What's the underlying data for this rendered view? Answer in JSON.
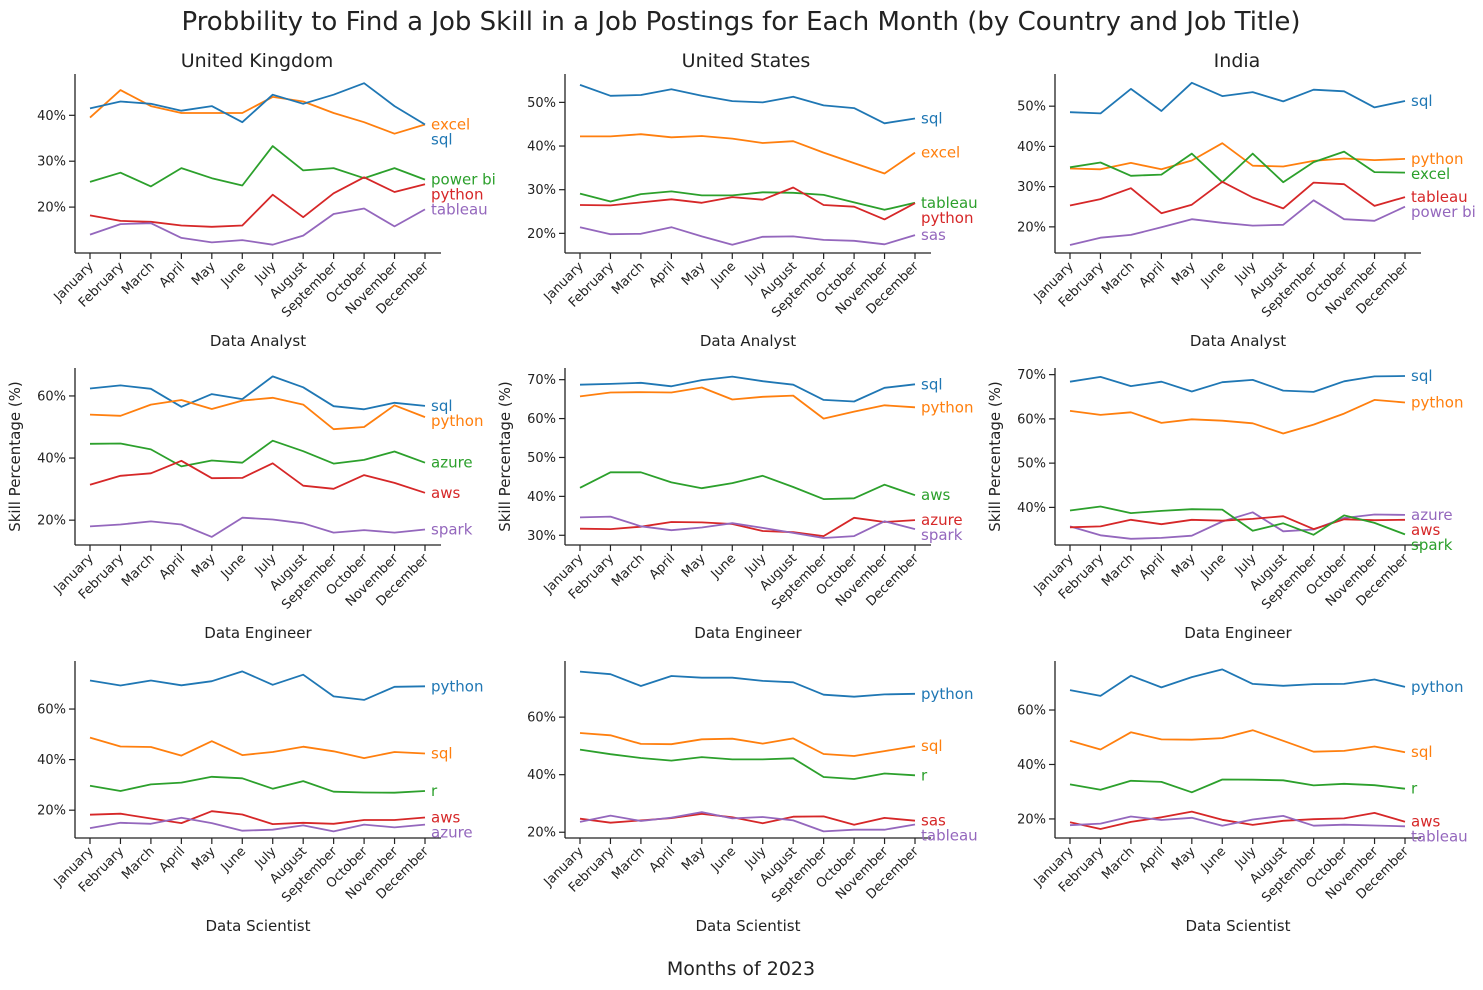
{
  "title": "Probbility to Find a Job Skill in a Job Postings for Each Month (by Country and Job Title)",
  "supxlabel": "Months of 2023",
  "ylabel": "Skill Percentage (%)",
  "colors": {
    "blue": "#1f77b4",
    "orange": "#ff7f0e",
    "green": "#2ca02c",
    "red": "#d62728",
    "purple": "#9467bd"
  },
  "months": [
    "January",
    "February",
    "March",
    "April",
    "May",
    "June",
    "July",
    "August",
    "September",
    "October",
    "November",
    "December"
  ],
  "chart_data": [
    {
      "type": "line",
      "country": "United Kingdom",
      "job_title": "Data Analyst",
      "xlabel": "Data Analyst",
      "ylabel": "",
      "ylim": [
        10,
        49
      ],
      "yticks": [
        20,
        30,
        40
      ],
      "series": [
        {
          "name": "excel",
          "color": "orange",
          "values": [
            39.5,
            45.5,
            42,
            40.5,
            40.5,
            40.5,
            44,
            43,
            40.5,
            38.5,
            36,
            38
          ]
        },
        {
          "name": "sql",
          "color": "blue",
          "values": [
            41.5,
            43,
            42.5,
            41,
            42,
            38.5,
            44.5,
            42.5,
            44.5,
            47,
            42,
            38
          ]
        },
        {
          "name": "power bi",
          "color": "green",
          "values": [
            25.5,
            27.5,
            24.5,
            28.5,
            26.3,
            24.7,
            33.3,
            28,
            28.5,
            26.3,
            28.5,
            26
          ]
        },
        {
          "name": "python",
          "color": "red",
          "values": [
            18.2,
            17,
            16.8,
            16,
            15.7,
            16,
            22.7,
            17.8,
            23,
            26.5,
            23.3,
            25
          ]
        },
        {
          "name": "tableau",
          "color": "purple",
          "values": [
            14,
            16.3,
            16.5,
            13.3,
            12.3,
            12.8,
            11.8,
            13.8,
            18.5,
            19.7,
            15.8,
            19.5
          ]
        }
      ]
    },
    {
      "type": "line",
      "country": "United States",
      "job_title": "Data Analyst",
      "xlabel": "Data Analyst",
      "ylabel": "",
      "ylim": [
        15.5,
        56.5
      ],
      "yticks": [
        20,
        30,
        40,
        50
      ],
      "series": [
        {
          "name": "sql",
          "color": "blue",
          "values": [
            54,
            51.5,
            51.7,
            53,
            51.5,
            50.3,
            50,
            51.3,
            49.3,
            48.7,
            45.2,
            46.3
          ]
        },
        {
          "name": "excel",
          "color": "orange",
          "values": [
            42.2,
            42.2,
            42.7,
            42,
            42.3,
            41.7,
            40.7,
            41.1,
            38.5,
            36.1,
            33.7,
            38.5
          ]
        },
        {
          "name": "tableau",
          "color": "green",
          "values": [
            29.1,
            27.3,
            29,
            29.6,
            28.7,
            28.7,
            29.4,
            29.3,
            28.8,
            27.1,
            25.4,
            27
          ]
        },
        {
          "name": "python",
          "color": "red",
          "values": [
            26.5,
            26.4,
            27.1,
            27.8,
            27,
            28.3,
            27.7,
            30.5,
            26.5,
            26.1,
            23.2,
            26.9
          ]
        },
        {
          "name": "sas",
          "color": "purple",
          "values": [
            21.4,
            19.8,
            19.9,
            21.4,
            19.3,
            17.4,
            19.2,
            19.3,
            18.5,
            18.3,
            17.5,
            19.6
          ]
        }
      ]
    },
    {
      "type": "line",
      "country": "India",
      "job_title": "Data Analyst",
      "xlabel": "Data Analyst",
      "ylabel": "",
      "ylim": [
        13.5,
        58
      ],
      "yticks": [
        20,
        30,
        40,
        50
      ],
      "series": [
        {
          "name": "sql",
          "color": "blue",
          "values": [
            48.5,
            48.2,
            54.3,
            48.8,
            55.8,
            52.5,
            53.5,
            51.2,
            54.1,
            53.7,
            49.7,
            51.3
          ]
        },
        {
          "name": "python",
          "color": "orange",
          "values": [
            34.5,
            34.3,
            35.9,
            34.3,
            36.5,
            40.8,
            35.2,
            35,
            36.4,
            37,
            36.6,
            36.9
          ]
        },
        {
          "name": "excel",
          "color": "green",
          "values": [
            34.8,
            36,
            32.7,
            33,
            38.2,
            31.1,
            38.2,
            31.1,
            36.1,
            38.7,
            33.6,
            33.5
          ]
        },
        {
          "name": "tableau",
          "color": "red",
          "values": [
            25.3,
            26.9,
            29.6,
            23.4,
            25.5,
            31.2,
            27.3,
            24.6,
            31,
            30.6,
            25.2,
            27.4
          ]
        },
        {
          "name": "power bi",
          "color": "purple",
          "values": [
            15.5,
            17.3,
            18,
            19.9,
            21.9,
            21,
            20.3,
            20.5,
            26.6,
            21.9,
            21.5,
            25
          ]
        }
      ]
    },
    {
      "type": "line",
      "country": "United Kingdom",
      "job_title": "Data Engineer",
      "xlabel": "Data Engineer",
      "ylabel": "Skill Percentage (%)",
      "ylim": [
        12,
        69
      ],
      "yticks": [
        20,
        40,
        60
      ],
      "series": [
        {
          "name": "sql",
          "color": "blue",
          "values": [
            62.4,
            63.4,
            62.3,
            56.5,
            60.6,
            59,
            66.3,
            62.8,
            56.7,
            55.7,
            57.8,
            56.8
          ]
        },
        {
          "name": "python",
          "color": "orange",
          "values": [
            54,
            53.6,
            57.2,
            58.7,
            55.8,
            58.5,
            59.4,
            57.2,
            49.3,
            50,
            57,
            53.2
          ]
        },
        {
          "name": "azure",
          "color": "green",
          "values": [
            44.6,
            44.7,
            42.8,
            37.3,
            39.2,
            38.5,
            45.6,
            42.2,
            38.2,
            39.4,
            42.1,
            38.5
          ]
        },
        {
          "name": "aws",
          "color": "red",
          "values": [
            31.4,
            34.3,
            35.1,
            39.1,
            33.5,
            33.6,
            38.3,
            31.1,
            30.1,
            34.5,
            32,
            28.8
          ]
        },
        {
          "name": "spark",
          "color": "purple",
          "values": [
            18,
            18.6,
            19.6,
            18.6,
            14.6,
            20.8,
            20.2,
            19,
            16,
            16.8,
            16,
            17
          ]
        }
      ]
    },
    {
      "type": "line",
      "country": "United States",
      "job_title": "Data Engineer",
      "xlabel": "Data Engineer",
      "ylabel": "Skill Percentage (%)",
      "ylim": [
        27.5,
        73
      ],
      "yticks": [
        30,
        40,
        50,
        60,
        70
      ],
      "series": [
        {
          "name": "sql",
          "color": "blue",
          "values": [
            68.7,
            68.9,
            69.2,
            68.3,
            69.9,
            70.8,
            69.6,
            68.7,
            64.8,
            64.4,
            67.9,
            68.8
          ]
        },
        {
          "name": "python",
          "color": "orange",
          "values": [
            65.7,
            66.7,
            66.8,
            66.7,
            68,
            64.9,
            65.6,
            65.9,
            60,
            61.8,
            63.4,
            62.9
          ]
        },
        {
          "name": "aws",
          "color": "green",
          "values": [
            42.2,
            46.2,
            46.2,
            43.6,
            42.1,
            43.4,
            45.3,
            42.4,
            39.3,
            39.5,
            43,
            40.3
          ]
        },
        {
          "name": "azure",
          "color": "red",
          "values": [
            31.7,
            31.6,
            32.2,
            33.4,
            33.3,
            32.9,
            31.1,
            30.8,
            29.8,
            34.5,
            33.4,
            33.9
          ]
        },
        {
          "name": "spark",
          "color": "purple",
          "values": [
            34.6,
            34.8,
            32.3,
            31.3,
            32,
            33.1,
            31.9,
            30.6,
            29.3,
            29.8,
            33.6,
            31.6
          ]
        }
      ]
    },
    {
      "type": "line",
      "country": "India",
      "job_title": "Data Engineer",
      "xlabel": "Data Engineer",
      "ylabel": "Skill Percentage (%)",
      "ylim": [
        31.5,
        71.5
      ],
      "yticks": [
        40,
        50,
        60,
        70
      ],
      "series": [
        {
          "name": "sql",
          "color": "blue",
          "values": [
            68.4,
            69.5,
            67.4,
            68.4,
            66.2,
            68.3,
            68.8,
            66.4,
            66.1,
            68.5,
            69.6,
            69.7
          ]
        },
        {
          "name": "python",
          "color": "orange",
          "values": [
            61.8,
            60.9,
            61.5,
            59.1,
            59.9,
            59.6,
            59,
            56.7,
            58.7,
            61.2,
            64.3,
            63.7
          ]
        },
        {
          "name": "azure",
          "color": "purple",
          "values": [
            35.7,
            33.7,
            32.9,
            33.1,
            33.6,
            36.8,
            38.9,
            34.6,
            35,
            37.6,
            38.4,
            38.3
          ]
        },
        {
          "name": "aws",
          "color": "red",
          "values": [
            35.5,
            35.7,
            37.2,
            36.2,
            37.2,
            37,
            37.4,
            38,
            35.1,
            37.3,
            37.1,
            37.2
          ]
        },
        {
          "name": "spark",
          "color": "green",
          "values": [
            39.3,
            40.2,
            38.7,
            39.2,
            39.6,
            39.5,
            34.7,
            36.4,
            33.8,
            38.2,
            36.5,
            33.9
          ]
        }
      ]
    },
    {
      "type": "line",
      "country": "United Kingdom",
      "job_title": "Data Scientist",
      "xlabel": "Data Scientist",
      "ylabel": "",
      "ylim": [
        9,
        79
      ],
      "yticks": [
        20,
        40,
        60
      ],
      "series": [
        {
          "name": "python",
          "color": "blue",
          "values": [
            71.3,
            69.3,
            71.3,
            69.4,
            71,
            74.9,
            69.6,
            73.6,
            65,
            63.6,
            68.8,
            69
          ]
        },
        {
          "name": "sql",
          "color": "orange",
          "values": [
            48.7,
            45.2,
            45,
            41.6,
            47.3,
            41.8,
            43,
            45.1,
            43.3,
            40.6,
            43,
            42.4
          ]
        },
        {
          "name": "r",
          "color": "green",
          "values": [
            29.7,
            27.6,
            30.2,
            30.9,
            33.2,
            32.6,
            28.5,
            31.5,
            27.3,
            27,
            26.9,
            27.6
          ]
        },
        {
          "name": "aws",
          "color": "red",
          "values": [
            18.2,
            18.6,
            16.7,
            14.9,
            19.6,
            18.3,
            14.5,
            15,
            14.6,
            16.1,
            16.1,
            17.1
          ]
        },
        {
          "name": "azure",
          "color": "purple",
          "values": [
            12.9,
            15,
            14.6,
            17,
            14.9,
            11.9,
            12.3,
            14,
            11.6,
            14.3,
            13.2,
            14.3
          ]
        }
      ]
    },
    {
      "type": "line",
      "country": "United States",
      "job_title": "Data Scientist",
      "xlabel": "Data Scientist",
      "ylabel": "",
      "ylim": [
        18,
        79.5
      ],
      "yticks": [
        20,
        40,
        60
      ],
      "series": [
        {
          "name": "python",
          "color": "blue",
          "values": [
            75.8,
            74.9,
            70.8,
            74.3,
            73.7,
            73.7,
            72.6,
            72.1,
            67.8,
            67.1,
            67.9,
            68.1
          ]
        },
        {
          "name": "sql",
          "color": "orange",
          "values": [
            54.5,
            53.7,
            50.7,
            50.6,
            52.3,
            52.5,
            50.8,
            52.6,
            47.2,
            46.5,
            48.2,
            49.9
          ]
        },
        {
          "name": "r",
          "color": "green",
          "values": [
            48.7,
            47.1,
            45.8,
            44.9,
            46.1,
            45.3,
            45.3,
            45.7,
            39.2,
            38.5,
            40.4,
            39.8
          ]
        },
        {
          "name": "sas",
          "color": "red",
          "values": [
            24.7,
            23.3,
            24.1,
            24.9,
            26.4,
            25.2,
            23.1,
            25.4,
            25.5,
            22.6,
            25,
            24
          ]
        },
        {
          "name": "tableau",
          "color": "purple",
          "values": [
            23.6,
            25.8,
            23.9,
            25.1,
            27,
            24.8,
            25.3,
            24.1,
            20.3,
            20.9,
            20.9,
            22.7
          ]
        }
      ]
    },
    {
      "type": "line",
      "country": "India",
      "job_title": "Data Scientist",
      "xlabel": "Data Scientist",
      "ylabel": "",
      "ylim": [
        13,
        78
      ],
      "yticks": [
        20,
        40,
        60
      ],
      "series": [
        {
          "name": "python",
          "color": "blue",
          "values": [
            67.3,
            65.2,
            72.6,
            68.3,
            72.1,
            74.9,
            69.6,
            68.9,
            69.5,
            69.6,
            71.2,
            68.5
          ]
        },
        {
          "name": "sql",
          "color": "orange",
          "values": [
            48.7,
            45.5,
            51.8,
            49.2,
            49.1,
            49.7,
            52.6,
            48.7,
            44.7,
            45,
            46.6,
            44.5
          ]
        },
        {
          "name": "r",
          "color": "green",
          "values": [
            32.7,
            30.7,
            34,
            33.6,
            29.8,
            34.5,
            34.4,
            34.2,
            32.3,
            32.9,
            32.4,
            31.1
          ]
        },
        {
          "name": "aws",
          "color": "red",
          "values": [
            18.8,
            16.3,
            18.9,
            20.6,
            22.7,
            19.7,
            17.8,
            19.3,
            19.9,
            20.2,
            22.2,
            19
          ]
        },
        {
          "name": "tableau",
          "color": "purple",
          "values": [
            17.7,
            18.3,
            20.9,
            19.6,
            20.4,
            17.5,
            19.8,
            21.1,
            17.5,
            17.9,
            17.6,
            17.3
          ]
        }
      ]
    }
  ]
}
